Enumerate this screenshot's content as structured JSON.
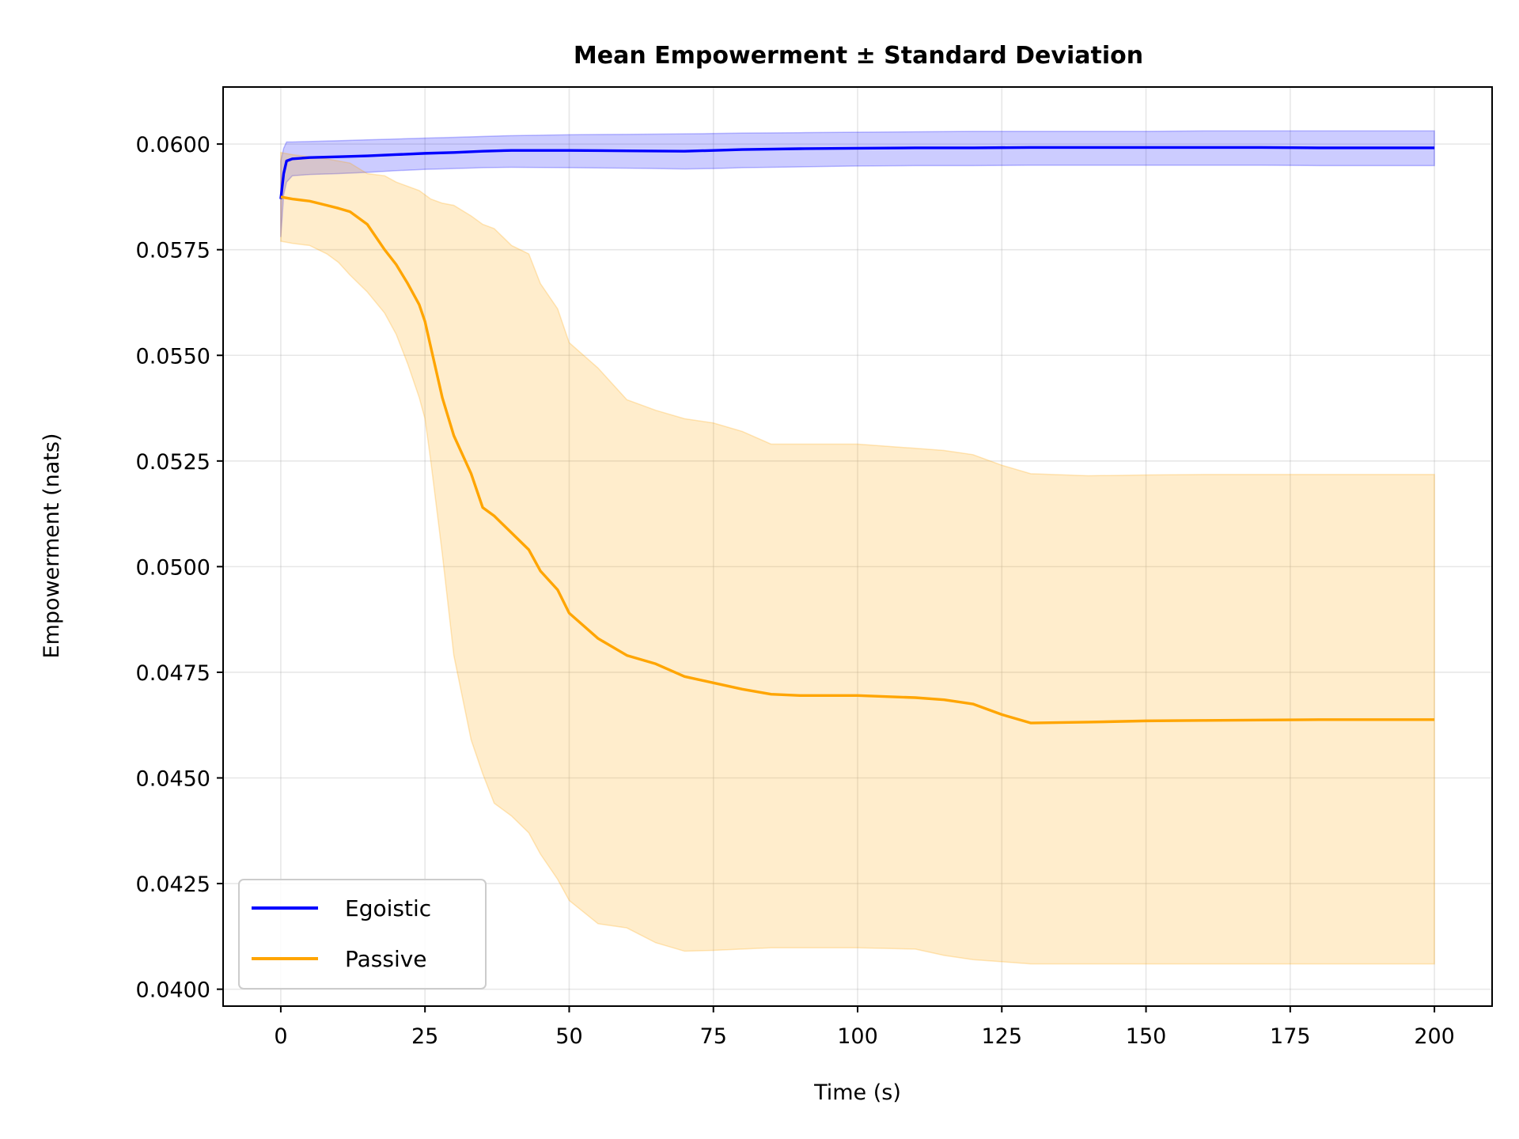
{
  "chart_data": {
    "type": "line",
    "title": "Mean Empowerment ± Standard Deviation",
    "xlabel": "Time (s)",
    "ylabel": "Empowerment (nats)",
    "xlim": [
      -10,
      210
    ],
    "ylim": [
      0.0396,
      0.06135
    ],
    "grid": true,
    "legend_position": "lower-left",
    "x_ticks": [
      0,
      25,
      50,
      75,
      100,
      125,
      150,
      175,
      200
    ],
    "x_tick_labels": [
      "0",
      "25",
      "50",
      "75",
      "100",
      "125",
      "150",
      "175",
      "200"
    ],
    "y_ticks": [
      0.04,
      0.0425,
      0.045,
      0.0475,
      0.05,
      0.0525,
      0.055,
      0.0575,
      0.06
    ],
    "y_tick_labels": [
      "0.0400",
      "0.0425",
      "0.0450",
      "0.0475",
      "0.0500",
      "0.0525",
      "0.0550",
      "0.0575",
      "0.0600"
    ],
    "series": [
      {
        "name": "Egoistic",
        "color": "#0000ff",
        "band_color": "#0000ff",
        "x": [
          0,
          0.5,
          1,
          2,
          5,
          10,
          15,
          20,
          25,
          30,
          35,
          40,
          50,
          60,
          70,
          75,
          80,
          90,
          100,
          110,
          120,
          130,
          140,
          150,
          160,
          170,
          180,
          190,
          200
        ],
        "mean": [
          0.0587,
          0.0593,
          0.0596,
          0.05965,
          0.05968,
          0.0597,
          0.05972,
          0.05975,
          0.05978,
          0.0598,
          0.05983,
          0.05985,
          0.05985,
          0.05984,
          0.05983,
          0.05985,
          0.05987,
          0.05989,
          0.0599,
          0.05991,
          0.05991,
          0.05992,
          0.05992,
          0.05992,
          0.05992,
          0.05992,
          0.05991,
          0.05991,
          0.05991
        ],
        "lower": [
          0.0578,
          0.0588,
          0.0591,
          0.05925,
          0.05928,
          0.0593,
          0.05933,
          0.05937,
          0.0594,
          0.05942,
          0.05944,
          0.05945,
          0.05944,
          0.05943,
          0.05941,
          0.05942,
          0.05944,
          0.05946,
          0.05948,
          0.05949,
          0.05949,
          0.0595,
          0.0595,
          0.0595,
          0.0595,
          0.0595,
          0.05949,
          0.05949,
          0.05949
        ],
        "upper": [
          0.0596,
          0.0599,
          0.06005,
          0.06005,
          0.06006,
          0.06008,
          0.0601,
          0.06012,
          0.06014,
          0.06016,
          0.06018,
          0.0602,
          0.06022,
          0.06023,
          0.06024,
          0.06025,
          0.06026,
          0.06027,
          0.06028,
          0.06029,
          0.0603,
          0.0603,
          0.0603,
          0.0603,
          0.06031,
          0.06031,
          0.06031,
          0.06031,
          0.06031
        ]
      },
      {
        "name": "Passive",
        "color": "#ffa500",
        "band_color": "#ffa500",
        "x": [
          0,
          2,
          5,
          8,
          10,
          12,
          15,
          18,
          20,
          22,
          24,
          25,
          26,
          28,
          30,
          33,
          35,
          37,
          40,
          43,
          45,
          48,
          50,
          55,
          60,
          65,
          70,
          75,
          80,
          85,
          90,
          100,
          110,
          115,
          120,
          125,
          130,
          140,
          150,
          160,
          170,
          180,
          190,
          200
        ],
        "mean": [
          0.05875,
          0.0587,
          0.05865,
          0.05855,
          0.05848,
          0.0584,
          0.0581,
          0.0575,
          0.05715,
          0.0567,
          0.0562,
          0.0558,
          0.0552,
          0.054,
          0.0531,
          0.0522,
          0.0514,
          0.0512,
          0.0508,
          0.0504,
          0.0499,
          0.04945,
          0.0489,
          0.0483,
          0.0479,
          0.0477,
          0.0474,
          0.04725,
          0.0471,
          0.04698,
          0.04695,
          0.04695,
          0.0469,
          0.04685,
          0.04675,
          0.0465,
          0.0463,
          0.04632,
          0.04635,
          0.04636,
          0.04637,
          0.04638,
          0.04638,
          0.04638
        ],
        "lower": [
          0.0577,
          0.05765,
          0.0576,
          0.0574,
          0.0572,
          0.0569,
          0.0565,
          0.056,
          0.0555,
          0.0548,
          0.054,
          0.0535,
          0.0525,
          0.0503,
          0.0479,
          0.0459,
          0.0451,
          0.0444,
          0.0441,
          0.0437,
          0.0432,
          0.0426,
          0.0421,
          0.04155,
          0.04145,
          0.0411,
          0.0409,
          0.04092,
          0.04095,
          0.04098,
          0.04098,
          0.04098,
          0.04095,
          0.0408,
          0.0407,
          0.04065,
          0.0406,
          0.0406,
          0.0406,
          0.0406,
          0.0406,
          0.0406,
          0.0406,
          0.0406
        ],
        "upper": [
          0.0598,
          0.05975,
          0.0597,
          0.05965,
          0.0596,
          0.05955,
          0.0593,
          0.05925,
          0.0591,
          0.059,
          0.0589,
          0.0588,
          0.0587,
          0.0586,
          0.05855,
          0.0583,
          0.0581,
          0.058,
          0.0576,
          0.0574,
          0.0567,
          0.0561,
          0.0553,
          0.0547,
          0.05395,
          0.0537,
          0.0535,
          0.0534,
          0.0532,
          0.0529,
          0.0529,
          0.0529,
          0.0528,
          0.05275,
          0.05265,
          0.0524,
          0.0522,
          0.05215,
          0.05217,
          0.05218,
          0.05218,
          0.05218,
          0.05218,
          0.05218
        ]
      }
    ]
  }
}
